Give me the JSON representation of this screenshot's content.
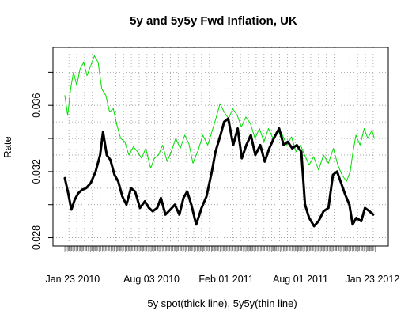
{
  "chart_data": {
    "type": "line",
    "title": "5y and 5y5y Fwd Inflation, UK",
    "xlabel": "5y spot(thick line), 5y5y(thin line)",
    "ylabel": "Rate",
    "x_range": [
      "2010-01-04",
      "2012-01-31"
    ],
    "ylim": [
      0.0275,
      0.0395
    ],
    "x_ticks": [
      {
        "date": "2010-01-23",
        "label": "Jan 23 2010"
      },
      {
        "date": "2010-08-03",
        "label": "Aug 03 2010"
      },
      {
        "date": "2011-02-01",
        "label": "Feb 01 2011"
      },
      {
        "date": "2011-08-01",
        "label": "Aug 01 2011"
      },
      {
        "date": "2012-01-23",
        "label": "Jan 23 2012"
      }
    ],
    "y_ticks": [
      {
        "value": 0.028,
        "label": "0.028"
      },
      {
        "value": 0.032,
        "label": "0.032"
      },
      {
        "value": 0.036,
        "label": "0.036"
      }
    ],
    "grid": true,
    "series": [
      {
        "color": "#000000",
        "line_width": "thick",
        "points": [
          [
            "2010-01-04",
            0.0316
          ],
          [
            "2010-01-12",
            0.0307
          ],
          [
            "2010-01-20",
            0.0297
          ],
          [
            "2010-01-28",
            0.0303
          ],
          [
            "2010-02-06",
            0.0307
          ],
          [
            "2010-02-15",
            0.0309
          ],
          [
            "2010-02-25",
            0.031
          ],
          [
            "2010-03-08",
            0.0313
          ],
          [
            "2010-03-20",
            0.032
          ],
          [
            "2010-03-31",
            0.033
          ],
          [
            "2010-04-07",
            0.0344
          ],
          [
            "2010-04-16",
            0.033
          ],
          [
            "2010-04-25",
            0.0327
          ],
          [
            "2010-05-05",
            0.0318
          ],
          [
            "2010-05-14",
            0.0314
          ],
          [
            "2010-05-24",
            0.0305
          ],
          [
            "2010-06-03",
            0.03
          ],
          [
            "2010-06-14",
            0.031
          ],
          [
            "2010-06-24",
            0.0308
          ],
          [
            "2010-07-06",
            0.0298
          ],
          [
            "2010-07-18",
            0.0302
          ],
          [
            "2010-07-28",
            0.0298
          ],
          [
            "2010-08-06",
            0.0296
          ],
          [
            "2010-08-17",
            0.0298
          ],
          [
            "2010-08-26",
            0.0304
          ],
          [
            "2010-09-06",
            0.0294
          ],
          [
            "2010-09-18",
            0.0297
          ],
          [
            "2010-09-29",
            0.03
          ],
          [
            "2010-10-10",
            0.0294
          ],
          [
            "2010-10-20",
            0.0304
          ],
          [
            "2010-10-29",
            0.0308
          ],
          [
            "2010-11-08",
            0.03
          ],
          [
            "2010-11-20",
            0.0288
          ],
          [
            "2010-12-03",
            0.0298
          ],
          [
            "2010-12-15",
            0.0305
          ],
          [
            "2010-12-28",
            0.032
          ],
          [
            "2011-01-06",
            0.0332
          ],
          [
            "2011-01-18",
            0.0342
          ],
          [
            "2011-01-27",
            0.035
          ],
          [
            "2011-02-06",
            0.0352
          ],
          [
            "2011-02-18",
            0.0336
          ],
          [
            "2011-03-01",
            0.0346
          ],
          [
            "2011-03-11",
            0.0328
          ],
          [
            "2011-03-22",
            0.0336
          ],
          [
            "2011-04-02",
            0.0342
          ],
          [
            "2011-04-13",
            0.033
          ],
          [
            "2011-04-25",
            0.0336
          ],
          [
            "2011-05-06",
            0.0326
          ],
          [
            "2011-05-17",
            0.0334
          ],
          [
            "2011-05-28",
            0.034
          ],
          [
            "2011-06-10",
            0.0346
          ],
          [
            "2011-06-21",
            0.0336
          ],
          [
            "2011-07-01",
            0.0338
          ],
          [
            "2011-07-12",
            0.0334
          ],
          [
            "2011-07-23",
            0.0336
          ],
          [
            "2011-08-03",
            0.0332
          ],
          [
            "2011-08-12",
            0.03
          ],
          [
            "2011-08-22",
            0.0292
          ],
          [
            "2011-09-03",
            0.0287
          ],
          [
            "2011-09-14",
            0.029
          ],
          [
            "2011-09-26",
            0.0296
          ],
          [
            "2011-10-08",
            0.0298
          ],
          [
            "2011-10-19",
            0.0318
          ],
          [
            "2011-10-29",
            0.032
          ],
          [
            "2011-11-08",
            0.0313
          ],
          [
            "2011-11-18",
            0.0306
          ],
          [
            "2011-11-28",
            0.03
          ],
          [
            "2011-12-06",
            0.0288
          ],
          [
            "2011-12-15",
            0.0292
          ],
          [
            "2011-12-27",
            0.029
          ],
          [
            "2012-01-05",
            0.0298
          ],
          [
            "2012-01-16",
            0.0296
          ],
          [
            "2012-01-25",
            0.0294
          ]
        ]
      },
      {
        "color": "#00dd00",
        "line_width": "thin",
        "points": [
          [
            "2010-01-04",
            0.0366
          ],
          [
            "2010-01-11",
            0.0354
          ],
          [
            "2010-01-18",
            0.037
          ],
          [
            "2010-01-25",
            0.038
          ],
          [
            "2010-02-02",
            0.0372
          ],
          [
            "2010-02-10",
            0.0382
          ],
          [
            "2010-02-19",
            0.0386
          ],
          [
            "2010-02-27",
            0.0378
          ],
          [
            "2010-03-08",
            0.0384
          ],
          [
            "2010-03-17",
            0.039
          ],
          [
            "2010-03-26",
            0.0386
          ],
          [
            "2010-04-04",
            0.037
          ],
          [
            "2010-04-14",
            0.0366
          ],
          [
            "2010-04-23",
            0.0356
          ],
          [
            "2010-05-02",
            0.0358
          ],
          [
            "2010-05-11",
            0.0348
          ],
          [
            "2010-05-20",
            0.034
          ],
          [
            "2010-05-30",
            0.0338
          ],
          [
            "2010-06-09",
            0.033
          ],
          [
            "2010-06-20",
            0.0335
          ],
          [
            "2010-06-30",
            0.0332
          ],
          [
            "2010-07-10",
            0.0328
          ],
          [
            "2010-07-20",
            0.0334
          ],
          [
            "2010-08-01",
            0.0322
          ],
          [
            "2010-08-10",
            0.0328
          ],
          [
            "2010-08-20",
            0.033
          ],
          [
            "2010-08-30",
            0.0336
          ],
          [
            "2010-09-10",
            0.0326
          ],
          [
            "2010-09-20",
            0.0332
          ],
          [
            "2010-10-01",
            0.034
          ],
          [
            "2010-10-12",
            0.0334
          ],
          [
            "2010-10-23",
            0.0342
          ],
          [
            "2010-11-02",
            0.0337
          ],
          [
            "2010-11-12",
            0.0325
          ],
          [
            "2010-11-25",
            0.0333
          ],
          [
            "2010-12-06",
            0.0342
          ],
          [
            "2010-12-18",
            0.0336
          ],
          [
            "2010-12-28",
            0.0344
          ],
          [
            "2011-01-07",
            0.0352
          ],
          [
            "2011-01-17",
            0.0361
          ],
          [
            "2011-01-27",
            0.0356
          ],
          [
            "2011-02-07",
            0.0352
          ],
          [
            "2011-02-17",
            0.0358
          ],
          [
            "2011-02-28",
            0.0354
          ],
          [
            "2011-03-10",
            0.0347
          ],
          [
            "2011-03-21",
            0.0353
          ],
          [
            "2011-04-01",
            0.0349
          ],
          [
            "2011-04-12",
            0.034
          ],
          [
            "2011-04-23",
            0.0346
          ],
          [
            "2011-05-04",
            0.0338
          ],
          [
            "2011-05-15",
            0.0346
          ],
          [
            "2011-05-26",
            0.034
          ],
          [
            "2011-06-07",
            0.0344
          ],
          [
            "2011-06-18",
            0.0342
          ],
          [
            "2011-06-29",
            0.0336
          ],
          [
            "2011-07-10",
            0.0341
          ],
          [
            "2011-07-21",
            0.0332
          ],
          [
            "2011-08-01",
            0.0336
          ],
          [
            "2011-08-11",
            0.033
          ],
          [
            "2011-08-22",
            0.0324
          ],
          [
            "2011-09-02",
            0.0329
          ],
          [
            "2011-09-14",
            0.0321
          ],
          [
            "2011-09-26",
            0.033
          ],
          [
            "2011-10-08",
            0.0325
          ],
          [
            "2011-10-20",
            0.0334
          ],
          [
            "2011-10-31",
            0.0324
          ],
          [
            "2011-11-10",
            0.0318
          ],
          [
            "2011-11-21",
            0.0314
          ],
          [
            "2011-11-30",
            0.032
          ],
          [
            "2011-12-07",
            0.0332
          ],
          [
            "2011-12-14",
            0.0342
          ],
          [
            "2011-12-24",
            0.0336
          ],
          [
            "2012-01-03",
            0.0346
          ],
          [
            "2012-01-12",
            0.034
          ],
          [
            "2012-01-22",
            0.0345
          ],
          [
            "2012-01-28",
            0.034
          ]
        ]
      }
    ]
  }
}
